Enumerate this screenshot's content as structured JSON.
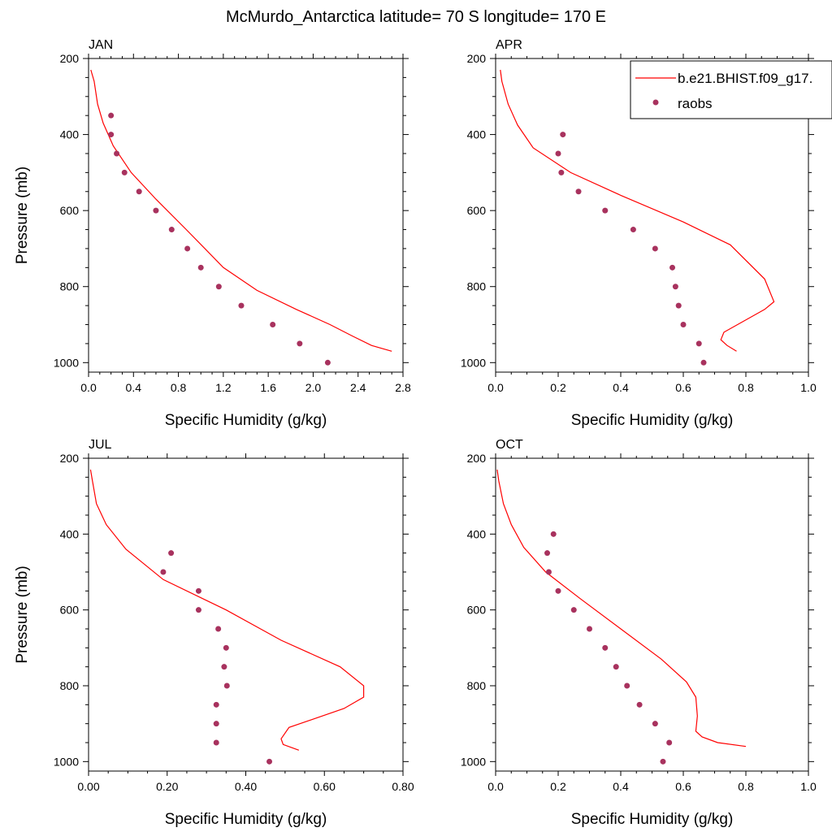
{
  "title": "McMurdo_Antarctica  latitude= 70 S longitude= 170 E",
  "legend": {
    "model_label": "b.e21.BHIST.f09_g17.",
    "obs_label": "raobs",
    "model_color": "#ff0000",
    "obs_color": "#a8325e"
  },
  "chart_data": [
    {
      "type": "line",
      "panel_title": "JAN",
      "xlabel": "Specific Humidity (g/kg)",
      "ylabel": "Pressure (mb)",
      "xlim": [
        0,
        2.8
      ],
      "ylim": [
        200,
        1025
      ],
      "x_ticks": [
        "0.0",
        "0.4",
        "0.8",
        "1.2",
        "1.6",
        "2.0",
        "2.4",
        "2.8"
      ],
      "y_ticks": [
        "200",
        "400",
        "600",
        "800",
        "1000"
      ],
      "y_inverted": true,
      "series": [
        {
          "name": "b.e21.BHIST.f09_g17.",
          "style": "line",
          "x": [
            0.02,
            0.05,
            0.08,
            0.13,
            0.22,
            0.38,
            0.6,
            0.87,
            1.2,
            1.5,
            1.85,
            2.15,
            2.35,
            2.52,
            2.7
          ],
          "y": [
            230,
            260,
            320,
            370,
            430,
            500,
            570,
            650,
            750,
            810,
            860,
            900,
            930,
            955,
            970
          ]
        },
        {
          "name": "raobs",
          "style": "markers",
          "x": [
            0.2,
            0.2,
            0.25,
            0.32,
            0.45,
            0.6,
            0.74,
            0.88,
            1.0,
            1.16,
            1.36,
            1.64,
            1.88,
            2.13
          ],
          "y": [
            350,
            400,
            450,
            500,
            550,
            600,
            650,
            700,
            750,
            800,
            850,
            900,
            950,
            1000
          ]
        }
      ]
    },
    {
      "type": "line",
      "panel_title": "APR",
      "xlabel": "Specific Humidity (g/kg)",
      "ylabel": "",
      "xlim": [
        0,
        1.0
      ],
      "ylim": [
        200,
        1025
      ],
      "x_ticks": [
        "0.0",
        "0.2",
        "0.4",
        "0.6",
        "0.8",
        "1.0"
      ],
      "y_ticks": [
        "200",
        "400",
        "600",
        "800",
        "1000"
      ],
      "y_inverted": true,
      "series": [
        {
          "name": "b.e21.BHIST.f09_g17.",
          "style": "line",
          "x": [
            0.015,
            0.02,
            0.04,
            0.07,
            0.12,
            0.24,
            0.4,
            0.6,
            0.75,
            0.86,
            0.89,
            0.86,
            0.73,
            0.72,
            0.74,
            0.77
          ],
          "y": [
            230,
            260,
            320,
            375,
            435,
            500,
            560,
            630,
            690,
            780,
            840,
            860,
            920,
            940,
            955,
            970
          ]
        },
        {
          "name": "raobs",
          "style": "markers",
          "x": [
            0.215,
            0.2,
            0.21,
            0.265,
            0.35,
            0.44,
            0.51,
            0.565,
            0.575,
            0.585,
            0.6,
            0.65,
            0.665
          ],
          "y": [
            400,
            450,
            500,
            550,
            600,
            650,
            700,
            750,
            800,
            850,
            900,
            950,
            1000
          ]
        }
      ]
    },
    {
      "type": "line",
      "panel_title": "JUL",
      "xlabel": "Specific Humidity (g/kg)",
      "ylabel": "Pressure (mb)",
      "xlim": [
        0,
        0.8
      ],
      "ylim": [
        200,
        1025
      ],
      "x_ticks": [
        "0.00",
        "0.20",
        "0.40",
        "0.60",
        "0.80"
      ],
      "y_ticks": [
        "200",
        "400",
        "600",
        "800",
        "1000"
      ],
      "y_inverted": true,
      "series": [
        {
          "name": "b.e21.BHIST.f09_g17.",
          "style": "line",
          "x": [
            0.005,
            0.01,
            0.02,
            0.045,
            0.095,
            0.19,
            0.35,
            0.49,
            0.64,
            0.7,
            0.7,
            0.65,
            0.51,
            0.49,
            0.495,
            0.535
          ],
          "y": [
            230,
            260,
            320,
            375,
            440,
            520,
            600,
            680,
            750,
            800,
            830,
            860,
            910,
            940,
            955,
            970
          ]
        },
        {
          "name": "raobs",
          "style": "markers",
          "x": [
            0.21,
            0.19,
            0.28,
            0.28,
            0.33,
            0.35,
            0.345,
            0.352,
            0.325,
            0.325,
            0.325,
            0.46
          ],
          "y": [
            450,
            500,
            550,
            600,
            650,
            700,
            750,
            800,
            850,
            900,
            950,
            1000
          ]
        }
      ]
    },
    {
      "type": "line",
      "panel_title": "OCT",
      "xlabel": "Specific Humidity (g/kg)",
      "ylabel": "",
      "xlim": [
        0,
        1.0
      ],
      "ylim": [
        200,
        1025
      ],
      "x_ticks": [
        "0.0",
        "0.2",
        "0.4",
        "0.6",
        "0.8",
        "1.0"
      ],
      "y_ticks": [
        "200",
        "400",
        "600",
        "800",
        "1000"
      ],
      "y_inverted": true,
      "series": [
        {
          "name": "b.e21.BHIST.f09_g17.",
          "style": "line",
          "x": [
            0.005,
            0.01,
            0.025,
            0.05,
            0.09,
            0.16,
            0.27,
            0.4,
            0.53,
            0.61,
            0.64,
            0.645,
            0.64,
            0.66,
            0.71,
            0.8
          ],
          "y": [
            230,
            260,
            320,
            375,
            435,
            500,
            570,
            650,
            730,
            790,
            830,
            880,
            920,
            935,
            950,
            960
          ]
        },
        {
          "name": "raobs",
          "style": "markers",
          "x": [
            0.185,
            0.165,
            0.17,
            0.2,
            0.25,
            0.3,
            0.35,
            0.385,
            0.42,
            0.46,
            0.51,
            0.555,
            0.535
          ],
          "y": [
            400,
            450,
            500,
            550,
            600,
            650,
            700,
            750,
            800,
            850,
            900,
            950,
            1000
          ]
        }
      ]
    }
  ]
}
